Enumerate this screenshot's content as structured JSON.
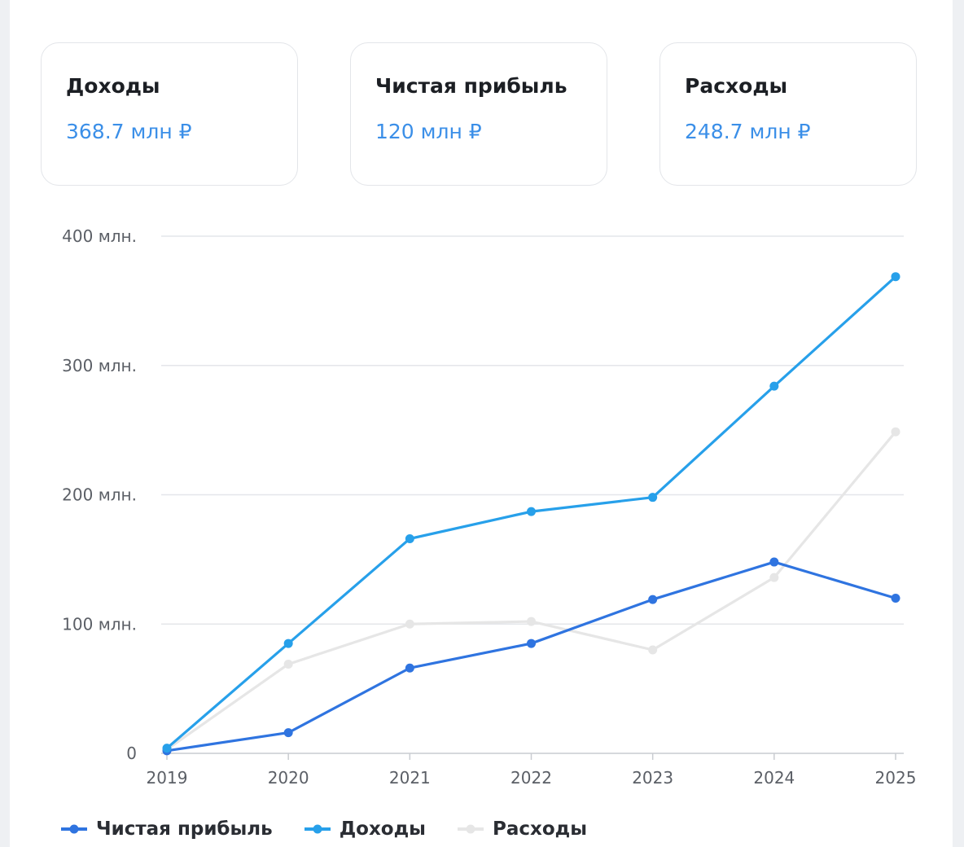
{
  "cards": [
    {
      "title": "Доходы",
      "value": "368.7 млн ₽"
    },
    {
      "title": "Чистая прибыль",
      "value": "120 млн ₽"
    },
    {
      "title": "Расходы",
      "value": "248.7 млн ₽"
    }
  ],
  "chart_data": {
    "type": "line",
    "x": [
      "2019",
      "2020",
      "2021",
      "2022",
      "2023",
      "2024",
      "2025"
    ],
    "y_ticks": [
      "0",
      "100 млн.",
      "200 млн.",
      "300 млн.",
      "400 млн."
    ],
    "ylim": [
      0,
      400
    ],
    "grid": true,
    "legend_position": "bottom-left",
    "series": [
      {
        "name": "Чистая прибыль",
        "color": "#2f74e0",
        "values": [
          2,
          16,
          66,
          85,
          119,
          148,
          120
        ]
      },
      {
        "name": "Доходы",
        "color": "#27a0ea",
        "values": [
          4,
          85,
          166,
          187,
          198,
          284,
          368.7
        ]
      },
      {
        "name": "Расходы",
        "color": "#e6e6e6",
        "values": [
          3,
          69,
          100,
          102,
          80,
          136,
          248.7
        ]
      }
    ]
  }
}
